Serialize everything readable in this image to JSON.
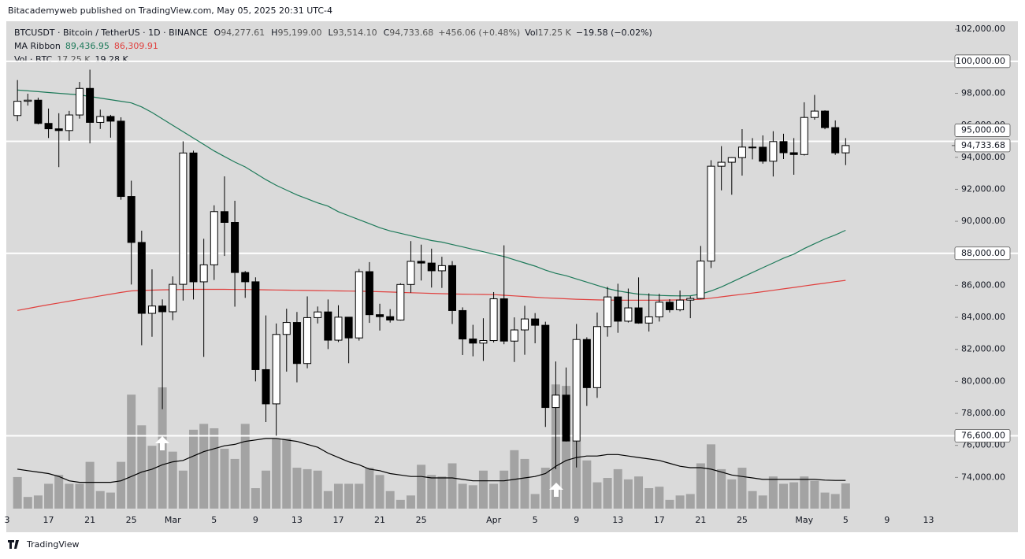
{
  "chart_data": {
    "type": "candlestick",
    "source": "Bitacademyweb published on TradingView.com, May 05, 2025 20:31 UTC-4",
    "title": "BTCUSDT · Bitcoin / TetherUS · 1D · BINANCE",
    "ohlc_header": [
      {
        "key": "O",
        "text": "94,277.61"
      },
      {
        "key": "H",
        "text": "95,199.00"
      },
      {
        "key": "L",
        "text": "93,514.10"
      },
      {
        "key": "C",
        "text": "94,733.68"
      }
    ],
    "change": "+456.06 (+0.48%)",
    "vol_header": {
      "key": "Vol",
      "text": "17.25 K",
      "change": "−19.58 (−0.02%)"
    },
    "brand": "TradingView",
    "categories": [
      "3",
      null,
      null,
      null,
      "17",
      null,
      null,
      null,
      "21",
      null,
      null,
      null,
      "25",
      null,
      null,
      null,
      "Mar",
      null,
      null,
      null,
      "5",
      null,
      null,
      null,
      "9",
      null,
      null,
      null,
      "13",
      null,
      null,
      null,
      "17",
      null,
      null,
      null,
      "21",
      null,
      null,
      null,
      "25",
      null,
      null,
      null,
      null,
      null,
      null,
      "Apr",
      null,
      null,
      null,
      "5",
      null,
      null,
      null,
      "9",
      null,
      null,
      null,
      "13",
      null,
      null,
      null,
      "17",
      null,
      null,
      null,
      "21",
      null,
      null,
      null,
      "25",
      null,
      null,
      null,
      null,
      null,
      "May",
      null,
      null,
      null,
      "5",
      null,
      null,
      null,
      "9",
      null,
      null,
      null,
      "13"
    ],
    "open": [
      null,
      96608,
      97500,
      97569,
      96118,
      95780,
      95671,
      96644,
      98305,
      96181,
      96551,
      96258,
      91552,
      88680,
      84250,
      84708,
      84349,
      86064,
      94270,
      86220,
      87281,
      90606,
      89931,
      86801,
      86222,
      80734,
      78595,
      82932,
      83680,
      81115,
      83983,
      84338,
      82574,
      84010,
      82715,
      86854,
      84167,
      84043,
      83832,
      86054,
      87498,
      87392,
      86909,
      87232,
      84424,
      82648,
      82390,
      82550,
      85159,
      82516,
      83214,
      83900,
      83505,
      78367,
      79140,
      76273,
      82615,
      79607,
      83424,
      85276,
      83760,
      84591,
      83643,
      84030,
      84947,
      84474,
      85077,
      85179,
      87516,
      93442,
      93691,
      93980,
      94638,
      94631,
      93755,
      94982,
      94286,
      94172,
      96489,
      96887,
      95856,
      94277.61,
      null,
      null,
      null,
      null,
      null,
      null,
      null,
      null
    ],
    "high": [
      null,
      98826,
      97972,
      97725,
      97046,
      96753,
      96899,
      98711,
      99475,
      96980,
      96650,
      96500,
      92540,
      89414,
      87000,
      85120,
      86558,
      95000,
      94416,
      88911,
      91000,
      92810,
      91283,
      86897,
      86500,
      84123,
      83617,
      84539,
      84336,
      85309,
      84676,
      85117,
      84756,
      84021,
      87022,
      87453,
      84850,
      84513,
      86129,
      88765,
      88543,
      88292,
      87786,
      87515,
      84624,
      83534,
      83943,
      85579,
      88500,
      83998,
      84720,
      84266,
      83727,
      81243,
      80867,
      83588,
      82753,
      84300,
      85905,
      86100,
      85799,
      86496,
      85500,
      85470,
      85132,
      85677,
      85320,
      88460,
      93817,
      94696,
      94000,
      95758,
      95199,
      95369,
      95630,
      95469,
      95200,
      97437,
      97895,
      96935,
      96304,
      95199,
      null,
      null,
      null,
      null,
      null,
      null,
      null,
      null
    ],
    "low": [
      null,
      96252,
      97232,
      96055,
      95205,
      93388,
      95029,
      96415,
      94871,
      95770,
      95227,
      91350,
      86050,
      82256,
      82786,
      78258,
      83824,
      85050,
      85117,
      81529,
      86334,
      87836,
      84667,
      85218,
      80000,
      77459,
      76606,
      80607,
      79939,
      80818,
      83618,
      82017,
      82456,
      81134,
      82547,
      83655,
      83175,
      83674,
      83796,
      85541,
      86300,
      85861,
      85837,
      83585,
      81644,
      81565,
      81278,
      82432,
      82320,
      81211,
      81659,
      82379,
      77153,
      74508,
      76239,
      74620,
      78464,
      78969,
      82792,
      83034,
      83678,
      83600,
      83111,
      83736,
      84303,
      84379,
      83949,
      85143,
      87084,
      91935,
      91660,
      92855,
      93870,
      93602,
      92800,
      93893,
      92910,
      94111,
      96350,
      95753,
      94151,
      93514.1,
      null,
      null,
      null,
      null,
      null,
      null,
      null,
      null
    ],
    "close": [
      null,
      97500,
      97569,
      96118,
      95780,
      95671,
      96644,
      98305,
      96181,
      96551,
      96258,
      91552,
      88680,
      84250,
      84708,
      84349,
      86064,
      94270,
      86220,
      87281,
      90606,
      89931,
      86801,
      86222,
      80734,
      78595,
      82932,
      83680,
      81115,
      83983,
      84338,
      82574,
      84010,
      82715,
      86854,
      84167,
      84043,
      83832,
      86054,
      87498,
      87392,
      86909,
      87232,
      84424,
      82648,
      82390,
      82550,
      85159,
      82516,
      83214,
      83900,
      83505,
      78367,
      79140,
      76273,
      82615,
      79607,
      83424,
      85276,
      83760,
      84591,
      83643,
      84030,
      84947,
      84474,
      85077,
      85179,
      87516,
      93442,
      93691,
      93980,
      94638,
      94631,
      93755,
      94982,
      94286,
      94172,
      96489,
      96887,
      95856,
      94277.61,
      94733.68,
      null,
      null,
      null,
      null,
      null,
      null,
      null,
      null
    ],
    "up_color": "#ffffff",
    "down_color": "#000000",
    "outline_color": "#000000",
    "ma_ribbon": {
      "name": "MA Ribbon",
      "series": [
        {
          "color": "#1e7a5a",
          "last_label": "89,436.95",
          "values": [
            null,
            98200,
            98150,
            98100,
            98050,
            98000,
            97950,
            97900,
            97800,
            97700,
            97600,
            97500,
            97400,
            97150,
            96800,
            96400,
            96000,
            95600,
            95200,
            94800,
            94400,
            94050,
            93700,
            93400,
            93000,
            92600,
            92250,
            91950,
            91650,
            91400,
            91150,
            90950,
            90600,
            90350,
            90100,
            89850,
            89600,
            89400,
            89250,
            89100,
            88950,
            88800,
            88700,
            88550,
            88400,
            88250,
            88100,
            87950,
            87800,
            87600,
            87400,
            87200,
            86950,
            86750,
            86600,
            86400,
            86200,
            86000,
            85800,
            85650,
            85550,
            85450,
            85400,
            85370,
            85350,
            85340,
            85350,
            85450,
            85650,
            85900,
            86200,
            86500,
            86800,
            87100,
            87400,
            87700,
            87950,
            88300,
            88600,
            88900,
            89150,
            89436.95,
            null,
            null,
            null,
            null,
            null,
            null,
            null,
            null
          ]
        },
        {
          "color": "#e0403e",
          "last_label": "86,309.91",
          "values": [
            null,
            84430,
            84550,
            84670,
            84790,
            84900,
            85010,
            85120,
            85230,
            85340,
            85450,
            85560,
            85650,
            85680,
            85700,
            85720,
            85730,
            85740,
            85750,
            85750,
            85750,
            85750,
            85740,
            85740,
            85730,
            85720,
            85710,
            85700,
            85690,
            85680,
            85670,
            85660,
            85650,
            85640,
            85630,
            85620,
            85600,
            85580,
            85560,
            85540,
            85520,
            85500,
            85480,
            85460,
            85450,
            85440,
            85430,
            85420,
            85380,
            85340,
            85300,
            85260,
            85220,
            85190,
            85160,
            85130,
            85110,
            85090,
            85080,
            85070,
            85070,
            85070,
            85070,
            85070,
            85080,
            85090,
            85100,
            85130,
            85200,
            85280,
            85360,
            85440,
            85520,
            85600,
            85690,
            85780,
            85870,
            85960,
            86050,
            86140,
            86230,
            86309.91,
            null,
            null,
            null,
            null,
            null,
            null,
            null,
            null
          ]
        }
      ]
    },
    "volume": {
      "name": "Vol · BTC",
      "color": "#a3a3a3",
      "last_label": "17.25 K",
      "ylim": [
        0,
        90
      ],
      "values": [
        null,
        21.6,
        8,
        9,
        17,
        23,
        17,
        17,
        32,
        12,
        11,
        32,
        78,
        57,
        43,
        83,
        39,
        26,
        54,
        58,
        55,
        41,
        34,
        58,
        14,
        26,
        48,
        48,
        28,
        27,
        26,
        12,
        17,
        17,
        17,
        28,
        23,
        12,
        6,
        9,
        30,
        23,
        22,
        31,
        17,
        16,
        26,
        17,
        26,
        40,
        34,
        10,
        28,
        85,
        84,
        46,
        33,
        18,
        21,
        27,
        20,
        22,
        14,
        15,
        6,
        9,
        10,
        31,
        44,
        27,
        20,
        28,
        12,
        9,
        22,
        17,
        18,
        22,
        19,
        11,
        10,
        17.25,
        null,
        null,
        null,
        null,
        null,
        null,
        null,
        null
      ],
      "ma": {
        "color": "#000000",
        "last_label": "19.28 K",
        "values": [
          null,
          27,
          26,
          25,
          24,
          22,
          19,
          18,
          18,
          18,
          18,
          19,
          22,
          25,
          27,
          30,
          32,
          33,
          36,
          39,
          41,
          43,
          44,
          46,
          47,
          48,
          48,
          47,
          46,
          44,
          42,
          38,
          35,
          32,
          30,
          27,
          26,
          24,
          23,
          22,
          22,
          21,
          21,
          21,
          20,
          19,
          19,
          19,
          19,
          20,
          21,
          22,
          24,
          29,
          33,
          35,
          36,
          36,
          37,
          37,
          36,
          35,
          34,
          33,
          31,
          29,
          28,
          28,
          27,
          25,
          23,
          22,
          21,
          20,
          20,
          20,
          20,
          20,
          20,
          19.5,
          19.3,
          19.28,
          null,
          null,
          null,
          null,
          null,
          null,
          null,
          null
        ]
      }
    },
    "ylim": [
      72000,
      102500
    ],
    "yticks": [
      {
        "value": 74000,
        "label": "74,000.00"
      },
      {
        "value": 76000,
        "label": "76,000.00"
      },
      {
        "value": 78000,
        "label": "78,000.00"
      },
      {
        "value": 80000,
        "label": "80,000.00"
      },
      {
        "value": 82000,
        "label": "82,000.00"
      },
      {
        "value": 84000,
        "label": "84,000.00"
      },
      {
        "value": 86000,
        "label": "86,000.00"
      },
      {
        "value": 90000,
        "label": "90,000.00"
      },
      {
        "value": 92000,
        "label": "92,000.00"
      },
      {
        "value": 94000,
        "label": "94,000.00"
      },
      {
        "value": 96000,
        "label": "96,000.00"
      },
      {
        "value": 98000,
        "label": "98,000.00"
      },
      {
        "value": 102000,
        "label": "102,000.00"
      }
    ],
    "levels": [
      {
        "value": 100000,
        "label": "100,000.00"
      },
      {
        "value": 95000,
        "label": "95,000.00"
      },
      {
        "value": 88000,
        "label": "88,000.00"
      },
      {
        "value": 76600,
        "label": "76,600.00"
      }
    ],
    "last_price": {
      "value": 94733.68,
      "label": "94,733.68"
    },
    "grid": false
  }
}
